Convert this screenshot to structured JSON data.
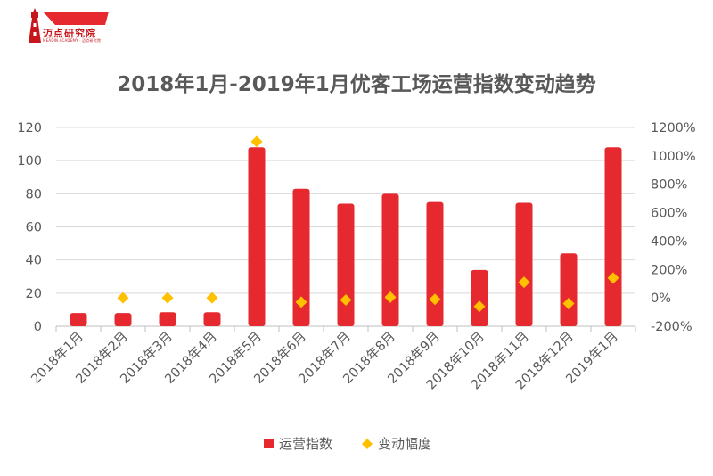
{
  "brand": {
    "name": "迈点研究院",
    "tagline": "MEADIN ACADEMY · 迈点研究院"
  },
  "chart_data": {
    "type": "bar",
    "title": "2018年1月-2019年1月优客工场运营指数变动趋势",
    "categories": [
      "2018年1月",
      "2018年2月",
      "2018年3月",
      "2018年4月",
      "2018年5月",
      "2018年6月",
      "2018年7月",
      "2018年8月",
      "2018年9月",
      "2018年10月",
      "2018年11月",
      "2018年12月",
      "2019年1月"
    ],
    "series": [
      {
        "name": "运营指数",
        "type": "bar",
        "axis": "left",
        "color": "#e6282f",
        "values": [
          8,
          8,
          8.5,
          8.5,
          108,
          83,
          74,
          80,
          75,
          34,
          74.5,
          44,
          108
        ]
      },
      {
        "name": "变动幅度",
        "type": "scatter",
        "axis": "right",
        "color": "#ffc000",
        "marker": "diamond",
        "values": [
          null,
          0,
          0,
          0,
          1100,
          -30,
          -15,
          5,
          -10,
          -60,
          110,
          -40,
          140
        ]
      }
    ],
    "left_axis": {
      "min": 0,
      "max": 120,
      "step": 20,
      "ticks": [
        "0",
        "20",
        "40",
        "60",
        "80",
        "100",
        "120"
      ]
    },
    "right_axis": {
      "min": -200,
      "max": 1200,
      "step": 200,
      "ticks": [
        "-200%",
        "0%",
        "200%",
        "400%",
        "600%",
        "800%",
        "1000%",
        "1200%"
      ]
    },
    "grid": true,
    "legend_position": "bottom"
  }
}
